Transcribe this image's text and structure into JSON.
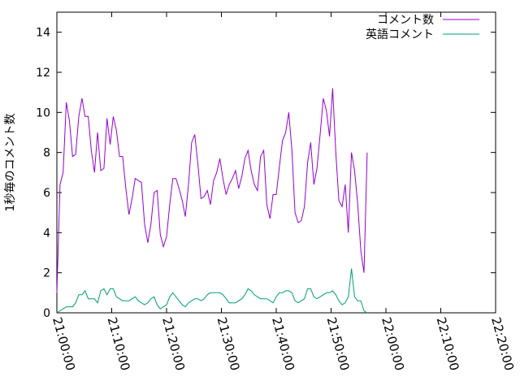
{
  "chart_data": {
    "type": "line",
    "title": "",
    "xlabel": "",
    "ylabel": "1秒毎のコメント数",
    "x_tick_labels": [
      "21:00:00",
      "21:10:00",
      "21:20:00",
      "21:30:00",
      "21:40:00",
      "21:50:00",
      "22:00:00",
      "22:10:00",
      "22:20:00"
    ],
    "x_range_minutes": [
      0,
      140
    ],
    "y_ticks": [
      "0",
      "2",
      "4",
      "6",
      "8",
      "10",
      "12",
      "14"
    ],
    "ylim": [
      0,
      15
    ],
    "grid": false,
    "legend_position": "top-right",
    "sample_interval_minutes": 1,
    "series": [
      {
        "name": "コメント数",
        "color": "#9400d3",
        "values": [
          1.0,
          6.4,
          7.0,
          10.5,
          9.6,
          7.8,
          7.9,
          9.8,
          10.7,
          9.8,
          9.8,
          8.1,
          7.0,
          9.0,
          7.1,
          7.2,
          9.7,
          8.4,
          9.8,
          9.1,
          7.8,
          7.8,
          6.2,
          4.9,
          5.7,
          6.7,
          6.6,
          6.5,
          4.4,
          3.5,
          4.4,
          6.0,
          6.1,
          3.9,
          3.3,
          3.8,
          5.4,
          6.7,
          6.7,
          6.2,
          5.6,
          4.8,
          6.4,
          8.5,
          8.9,
          7.4,
          5.7,
          5.8,
          6.1,
          5.4,
          6.6,
          7.0,
          7.7,
          6.7,
          5.9,
          6.4,
          6.7,
          7.1,
          6.2,
          6.8,
          7.7,
          8.1,
          7.1,
          6.4,
          6.1,
          7.8,
          8.1,
          5.4,
          4.7,
          5.9,
          5.9,
          7.3,
          8.6,
          9.0,
          10.0,
          8.1,
          5.0,
          4.5,
          4.6,
          5.3,
          7.5,
          8.5,
          6.4,
          7.2,
          8.9,
          10.7,
          10.1,
          8.8,
          11.2,
          8.0,
          5.6,
          5.3,
          6.4,
          4.0,
          8.0,
          7.1,
          5.4,
          3.1,
          2.0,
          8.0
        ]
      },
      {
        "name": "英語コメント",
        "color": "#009e73",
        "values": [
          0.0,
          0.1,
          0.2,
          0.3,
          0.3,
          0.3,
          0.5,
          0.9,
          0.9,
          1.1,
          0.7,
          0.7,
          0.7,
          0.5,
          1.1,
          1.2,
          0.9,
          1.2,
          1.2,
          0.8,
          0.7,
          0.6,
          0.6,
          0.6,
          0.7,
          0.8,
          0.6,
          0.5,
          0.4,
          0.5,
          0.7,
          0.8,
          0.4,
          0.2,
          0.3,
          0.4,
          0.8,
          1.0,
          0.8,
          0.6,
          0.4,
          0.3,
          0.5,
          0.6,
          0.7,
          0.7,
          0.6,
          0.7,
          0.9,
          1.0,
          1.0,
          1.0,
          1.0,
          0.9,
          0.7,
          0.5,
          0.5,
          0.5,
          0.6,
          0.7,
          0.9,
          1.2,
          1.1,
          0.9,
          0.8,
          0.7,
          0.7,
          0.7,
          0.6,
          0.5,
          0.8,
          1.0,
          1.0,
          1.1,
          1.1,
          1.0,
          0.6,
          0.5,
          0.6,
          0.7,
          1.2,
          1.2,
          0.8,
          0.7,
          0.8,
          0.9,
          1.0,
          1.0,
          1.1,
          0.9,
          0.6,
          0.4,
          0.5,
          0.8,
          2.2,
          0.8,
          0.6,
          0.6,
          0.1,
          0.0
        ]
      }
    ]
  }
}
